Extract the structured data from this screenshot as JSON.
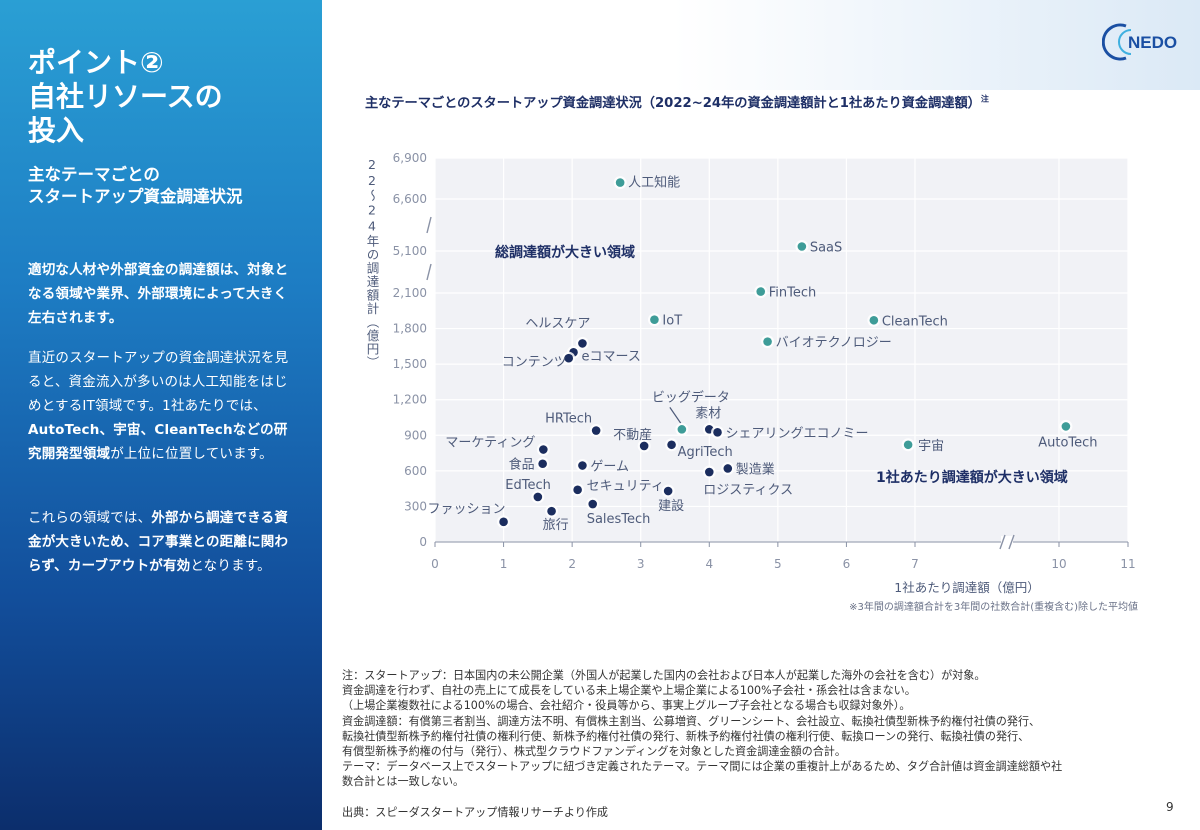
{
  "sidebar": {
    "title_lines": [
      "ポイント②",
      "自社リソースの",
      "投入"
    ],
    "subtitle_lines": [
      "主なテーマごとの",
      "スタートアップ資金調達状況"
    ],
    "paragraph1": "適切な人材や外部資金の調達額は、対象となる領域や業界、外部環境によって大きく左右されます。",
    "paragraph2": {
      "a": "直近のスタートアップの資金調達状況を見ると、資金流入が多いのは人工知能をはじめとするIT領域です。1社あたりでは、",
      "b": "AutoTech、宇宙、CleanTechなどの研究開発型領域",
      "c": "が上位に位置しています。"
    },
    "paragraph3": {
      "a": "これらの領域では、",
      "b": "外部から調達できる資金が大きいため、コア事業との距離に関わらず、カーブアウトが有効",
      "c": "となります。"
    }
  },
  "logo": {
    "text": "NEDO"
  },
  "chart_title": "主なテーマごとのスタートアップ資金調達状況（2022~24年の資金調達額計と1社あたり資金調達額）",
  "chart_title_sup": "注",
  "chart_data": {
    "type": "scatter",
    "title": "主なテーマごとのスタートアップ資金調達状況（2022~24年の資金調達額計と1社あたり資金調達額）",
    "xlabel": "1社あたり調達額（億円）",
    "xnote": "※3年間の調達額合計を3年間の社数合計(重複含む)除した平均値",
    "ylabel": "22〜24年の調達額計（億円）",
    "x_ticks": [
      "0",
      "1",
      "2",
      "3",
      "4",
      "5",
      "6",
      "7",
      "10",
      "11"
    ],
    "y_ticks": [
      "0",
      "300",
      "600",
      "900",
      "1,200",
      "1,500",
      "1,800",
      "2,100",
      "5,100",
      "6,600",
      "6,900"
    ],
    "x_axis_break": "between 7 and 10",
    "y_axis_breaks": [
      "between 2,100 and 5,100",
      "between 5,100 and 6,600"
    ],
    "grid": true,
    "region_labels": [
      "総調達額が大きい領域",
      "1社あたり調達額が大きい領域"
    ],
    "points": [
      {
        "name": "人工知能",
        "x": 2.7,
        "y": 6720,
        "highlight": true
      },
      {
        "name": "SaaS",
        "x": 5.35,
        "y": 5230,
        "highlight": true
      },
      {
        "name": "FinTech",
        "x": 4.75,
        "y": 2200,
        "highlight": true
      },
      {
        "name": "IoT",
        "x": 3.2,
        "y": 1875,
        "highlight": true
      },
      {
        "name": "CleanTech",
        "x": 6.4,
        "y": 1870,
        "highlight": true
      },
      {
        "name": "バイオテクノロジー",
        "x": 4.85,
        "y": 1690,
        "highlight": true
      },
      {
        "name": "ヘルスケア",
        "x": 2.15,
        "y": 1675,
        "highlight": false
      },
      {
        "name": "eコマース",
        "x": 2.02,
        "y": 1600,
        "highlight": false
      },
      {
        "name": "コンテンツ",
        "x": 1.95,
        "y": 1550,
        "highlight": false
      },
      {
        "name": "ビッグデータ",
        "x": 3.6,
        "y": 950,
        "highlight": true
      },
      {
        "name": "HRTech",
        "x": 2.35,
        "y": 940,
        "highlight": false
      },
      {
        "name": "素材",
        "x": 4.0,
        "y": 950,
        "highlight": false
      },
      {
        "name": "シェアリングエコノミー",
        "x": 4.12,
        "y": 925,
        "highlight": false
      },
      {
        "name": "不動産",
        "x": 3.05,
        "y": 810,
        "highlight": false
      },
      {
        "name": "AgriTech",
        "x": 3.45,
        "y": 820,
        "highlight": false
      },
      {
        "name": "宇宙",
        "x": 6.9,
        "y": 820,
        "highlight": true
      },
      {
        "name": "AutoTech",
        "x": 10.1,
        "y": 975,
        "highlight": true
      },
      {
        "name": "マーケティング",
        "x": 1.58,
        "y": 780,
        "highlight": false
      },
      {
        "name": "食品",
        "x": 1.57,
        "y": 660,
        "highlight": false
      },
      {
        "name": "ゲーム",
        "x": 2.15,
        "y": 645,
        "highlight": false
      },
      {
        "name": "製造業",
        "x": 4.27,
        "y": 620,
        "highlight": false
      },
      {
        "name": "ロジスティクス",
        "x": 4.0,
        "y": 590,
        "highlight": false
      },
      {
        "name": "EdTech",
        "x": 1.5,
        "y": 380,
        "highlight": false
      },
      {
        "name": "セキュリティ",
        "x": 2.08,
        "y": 440,
        "highlight": false
      },
      {
        "name": "建設",
        "x": 3.4,
        "y": 430,
        "highlight": false
      },
      {
        "name": "SalesTech",
        "x": 2.3,
        "y": 320,
        "highlight": false
      },
      {
        "name": "旅行",
        "x": 1.7,
        "y": 260,
        "highlight": false
      },
      {
        "name": "ファッション",
        "x": 1.0,
        "y": 170,
        "highlight": false
      }
    ]
  },
  "notes": [
    "注：スタートアップ：日本国内の未公開企業（外国人が起業した国内の会社および日本人が起業した海外の会社を含む）が対象。",
    "資金調達を行わず、自社の売上にて成長をしている未上場企業や上場企業による100%子会社・孫会社は含まない。",
    "（上場企業複数社による100%の場合、会社紹介・役員等から、事実上グループ子会社となる場合も収録対象外）。",
    "資金調達額：有償第三者割当、調達方法不明、有償株主割当、公募増資、グリーンシート、会社設立、転換社債型新株予約権付社債の発行、",
    "転換社債型新株予約権付社債の権利行使、新株予約権付社債の発行、新株予約権付社債の権利行使、転換ローンの発行、転換社債の発行、",
    "有償型新株予約権の付与（発行）、株式型クラウドファンディングを対象とした資金調達金額の合計。",
    "テーマ：データベース上でスタートアップに紐づき定義されたテーマ。テーマ間には企業の重複計上があるため、タグ合計値は資金調達総額や社",
    "数合計とは一致しない。"
  ],
  "source": "出典：スピーダスタートアップ情報リサーチより作成",
  "page_number": "9",
  "colors": {
    "highlight_marker": "#3e9c98",
    "normal_marker": "#1b2d5e",
    "sidebar_top": "#2a9fd4",
    "sidebar_bottom": "#0c2e6c",
    "title_text": "#1e2f66"
  }
}
